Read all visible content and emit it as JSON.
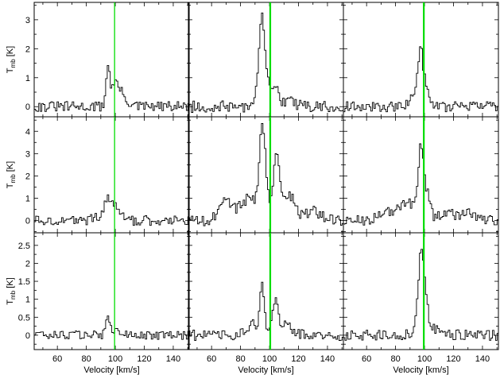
{
  "figure": {
    "ylabel_main": "T",
    "ylabel_sub": "mb",
    "ylabel_unit": " [K]",
    "xlabel": "Velocity [km/s]",
    "xticks": [
      "60",
      "80",
      "100",
      "120",
      "140"
    ],
    "ticks_by_row": [
      [
        "0",
        "1",
        "2",
        "3"
      ],
      [
        "0",
        "1",
        "2",
        "3",
        "4"
      ],
      [
        "0",
        "0.5",
        "1",
        "1.5",
        "2",
        "2.5"
      ]
    ],
    "colors": {
      "spectrum": "#000000",
      "marker": "#00dd00",
      "axes": "#000000"
    }
  },
  "chart_data": {
    "type": "line",
    "layout": "3x3 grid of step spectra, shared x axis per column, shared y axis per row",
    "xlabel": "Velocity [km/s]",
    "ylabel": "T_mb [K]",
    "xlim": [
      44,
      151
    ],
    "ylims": [
      [
        -0.35,
        3.6
      ],
      [
        -0.55,
        4.65
      ],
      [
        -0.4,
        2.85
      ]
    ],
    "vertical_marker_velocity": [
      99.5,
      100.5,
      99.5
    ],
    "panels": [
      {
        "row": 0,
        "col": 0,
        "noise": 0.18,
        "components": [
          [
            94.5,
            1.35,
            1.4
          ],
          [
            99.5,
            0.55,
            2.0
          ],
          [
            103,
            0.45,
            4.0
          ]
        ]
      },
      {
        "row": 0,
        "col": 1,
        "noise": 0.2,
        "components": [
          [
            94.5,
            2.9,
            1.6
          ],
          [
            92,
            1.0,
            1.5
          ],
          [
            98,
            0.55,
            1.5
          ],
          [
            102,
            0.7,
            2.5
          ],
          [
            110,
            0.2,
            6.0
          ]
        ]
      },
      {
        "row": 0,
        "col": 2,
        "noise": 0.18,
        "components": [
          [
            97,
            1.5,
            1.8
          ],
          [
            94,
            0.6,
            3.0
          ],
          [
            101.5,
            0.45,
            2.5
          ]
        ]
      },
      {
        "row": 1,
        "col": 0,
        "noise": 0.22,
        "components": [
          [
            94,
            0.85,
            1.5
          ],
          [
            99.5,
            0.7,
            3.0
          ],
          [
            90,
            0.2,
            5.0
          ]
        ]
      },
      {
        "row": 1,
        "col": 1,
        "noise": 0.25,
        "components": [
          [
            94.5,
            3.7,
            1.8
          ],
          [
            86,
            1.0,
            7.0
          ],
          [
            104,
            2.8,
            2.0
          ],
          [
            112,
            1.2,
            5.0
          ],
          [
            69,
            0.9,
            4.0
          ],
          [
            130,
            0.4,
            5.0
          ],
          [
            97.5,
            1.0,
            1.5
          ]
        ]
      },
      {
        "row": 1,
        "col": 2,
        "noise": 0.22,
        "components": [
          [
            97,
            3.1,
            1.7
          ],
          [
            88,
            0.8,
            7.0
          ],
          [
            101.5,
            1.1,
            2.0
          ],
          [
            115,
            0.35,
            5.0
          ],
          [
            130,
            0.35,
            5.0
          ],
          [
            72,
            0.35,
            5.0
          ]
        ]
      },
      {
        "row": 2,
        "col": 0,
        "noise": 0.12,
        "components": [
          [
            94.5,
            0.48,
            1.5
          ],
          [
            100,
            0.15,
            3.0
          ]
        ]
      },
      {
        "row": 2,
        "col": 1,
        "noise": 0.15,
        "components": [
          [
            94.5,
            1.35,
            1.6
          ],
          [
            88,
            0.3,
            4.0
          ],
          [
            103,
            0.85,
            2.0
          ],
          [
            110,
            0.35,
            5.0
          ]
        ]
      },
      {
        "row": 2,
        "col": 2,
        "noise": 0.15,
        "components": [
          [
            97,
            2.05,
            1.6
          ],
          [
            100,
            0.9,
            2.0
          ],
          [
            94,
            0.4,
            2.0
          ],
          [
            106,
            0.15,
            5.0
          ]
        ]
      }
    ]
  }
}
